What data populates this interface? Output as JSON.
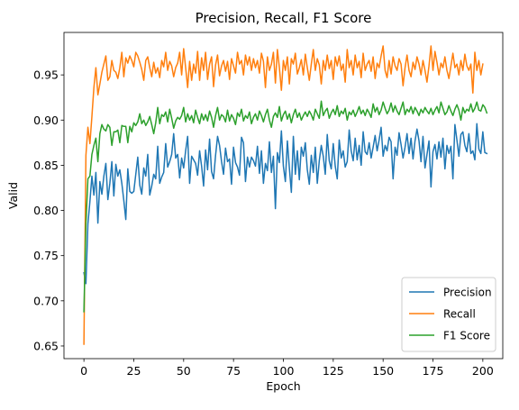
{
  "chart_data": {
    "type": "line",
    "title": "Precision, Recall, F1 Score",
    "xlabel": "Epoch",
    "ylabel": "Valid",
    "xlim": [
      -10,
      210
    ],
    "ylim": [
      0.636,
      0.997
    ],
    "xticks": [
      0,
      25,
      50,
      75,
      100,
      125,
      150,
      175,
      200
    ],
    "yticks": [
      0.65,
      0.7,
      0.75,
      0.8,
      0.85,
      0.9,
      0.95
    ],
    "ytick_labels": [
      "0.65",
      "0.70",
      "0.75",
      "0.80",
      "0.85",
      "0.90",
      "0.95"
    ],
    "grid": false,
    "legend_position": "bottom-right",
    "x_start": 0,
    "x_step": 1,
    "series": [
      {
        "name": "Precision",
        "color": "#1f77b4",
        "values": [
          0.731,
          0.719,
          0.785,
          0.81,
          0.838,
          0.817,
          0.842,
          0.786,
          0.832,
          0.818,
          0.838,
          0.852,
          0.812,
          0.83,
          0.854,
          0.816,
          0.851,
          0.838,
          0.845,
          0.83,
          0.811,
          0.79,
          0.846,
          0.821,
          0.819,
          0.821,
          0.84,
          0.859,
          0.828,
          0.818,
          0.847,
          0.838,
          0.862,
          0.817,
          0.827,
          0.84,
          0.835,
          0.871,
          0.83,
          0.837,
          0.842,
          0.874,
          0.848,
          0.854,
          0.862,
          0.885,
          0.858,
          0.862,
          0.836,
          0.858,
          0.847,
          0.866,
          0.882,
          0.83,
          0.86,
          0.856,
          0.852,
          0.839,
          0.866,
          0.849,
          0.827,
          0.867,
          0.845,
          0.879,
          0.843,
          0.835,
          0.861,
          0.882,
          0.872,
          0.854,
          0.84,
          0.869,
          0.854,
          0.857,
          0.829,
          0.87,
          0.853,
          0.848,
          0.839,
          0.881,
          0.875,
          0.832,
          0.859,
          0.848,
          0.859,
          0.855,
          0.849,
          0.871,
          0.841,
          0.866,
          0.83,
          0.852,
          0.844,
          0.876,
          0.842,
          0.86,
          0.802,
          0.864,
          0.853,
          0.888,
          0.849,
          0.832,
          0.877,
          0.847,
          0.82,
          0.882,
          0.84,
          0.866,
          0.834,
          0.87,
          0.86,
          0.875,
          0.845,
          0.829,
          0.861,
          0.842,
          0.87,
          0.83,
          0.855,
          0.872,
          0.86,
          0.84,
          0.884,
          0.855,
          0.846,
          0.874,
          0.849,
          0.835,
          0.878,
          0.858,
          0.866,
          0.848,
          0.854,
          0.889,
          0.866,
          0.855,
          0.88,
          0.856,
          0.872,
          0.85,
          0.887,
          0.865,
          0.862,
          0.875,
          0.858,
          0.87,
          0.883,
          0.866,
          0.878,
          0.892,
          0.86,
          0.872,
          0.866,
          0.881,
          0.876,
          0.835,
          0.87,
          0.861,
          0.886,
          0.873,
          0.858,
          0.87,
          0.885,
          0.863,
          0.88,
          0.857,
          0.877,
          0.89,
          0.877,
          0.854,
          0.882,
          0.847,
          0.862,
          0.877,
          0.826,
          0.865,
          0.873,
          0.857,
          0.876,
          0.859,
          0.88,
          0.846,
          0.872,
          0.863,
          0.871,
          0.835,
          0.895,
          0.878,
          0.86,
          0.884,
          0.887,
          0.872,
          0.865,
          0.885,
          0.863,
          0.866,
          0.856,
          0.896,
          0.868,
          0.863,
          0.887,
          0.864,
          0.863
        ]
      },
      {
        "name": "Recall",
        "color": "#ff7f0e",
        "values": [
          0.652,
          0.861,
          0.892,
          0.874,
          0.904,
          0.936,
          0.958,
          0.928,
          0.94,
          0.953,
          0.962,
          0.971,
          0.944,
          0.948,
          0.966,
          0.955,
          0.953,
          0.946,
          0.958,
          0.975,
          0.948,
          0.969,
          0.963,
          0.971,
          0.966,
          0.959,
          0.975,
          0.971,
          0.964,
          0.956,
          0.944,
          0.966,
          0.97,
          0.958,
          0.948,
          0.964,
          0.952,
          0.958,
          0.947,
          0.966,
          0.959,
          0.975,
          0.955,
          0.965,
          0.96,
          0.948,
          0.958,
          0.963,
          0.975,
          0.95,
          0.979,
          0.958,
          0.936,
          0.965,
          0.944,
          0.962,
          0.952,
          0.976,
          0.944,
          0.969,
          0.955,
          0.975,
          0.945,
          0.962,
          0.97,
          0.937,
          0.961,
          0.972,
          0.949,
          0.96,
          0.966,
          0.954,
          0.965,
          0.945,
          0.968,
          0.96,
          0.952,
          0.975,
          0.962,
          0.966,
          0.95,
          0.972,
          0.961,
          0.97,
          0.955,
          0.968,
          0.958,
          0.966,
          0.952,
          0.974,
          0.965,
          0.936,
          0.97,
          0.955,
          0.962,
          0.975,
          0.941,
          0.978,
          0.958,
          0.933,
          0.966,
          0.955,
          0.97,
          0.94,
          0.968,
          0.962,
          0.974,
          0.951,
          0.958,
          0.967,
          0.95,
          0.973,
          0.958,
          0.944,
          0.962,
          0.978,
          0.955,
          0.968,
          0.961,
          0.94,
          0.966,
          0.955,
          0.972,
          0.957,
          0.966,
          0.945,
          0.97,
          0.96,
          0.971,
          0.955,
          0.962,
          0.942,
          0.978,
          0.958,
          0.966,
          0.95,
          0.972,
          0.958,
          0.965,
          0.947,
          0.974,
          0.955,
          0.962,
          0.966,
          0.954,
          0.97,
          0.946,
          0.963,
          0.958,
          0.971,
          0.982,
          0.955,
          0.947,
          0.966,
          0.951,
          0.97,
          0.96,
          0.955,
          0.968,
          0.962,
          0.938,
          0.958,
          0.972,
          0.955,
          0.948,
          0.964,
          0.956,
          0.97,
          0.962,
          0.95,
          0.966,
          0.955,
          0.942,
          0.96,
          0.982,
          0.955,
          0.976,
          0.964,
          0.95,
          0.963,
          0.958,
          0.97,
          0.955,
          0.946,
          0.96,
          0.974,
          0.958,
          0.962,
          0.95,
          0.966,
          0.955,
          0.973,
          0.96,
          0.955,
          0.962,
          0.93,
          0.975,
          0.955,
          0.966,
          0.95,
          0.962
        ]
      },
      {
        "name": "F1 Score",
        "color": "#2ca02c",
        "values": [
          0.688,
          0.785,
          0.835,
          0.838,
          0.862,
          0.872,
          0.88,
          0.854,
          0.885,
          0.895,
          0.89,
          0.888,
          0.895,
          0.892,
          0.872,
          0.887,
          0.887,
          0.889,
          0.875,
          0.894,
          0.893,
          0.893,
          0.875,
          0.893,
          0.887,
          0.897,
          0.894,
          0.898,
          0.907,
          0.896,
          0.9,
          0.894,
          0.898,
          0.904,
          0.895,
          0.885,
          0.897,
          0.914,
          0.896,
          0.906,
          0.904,
          0.909,
          0.898,
          0.912,
          0.902,
          0.891,
          0.899,
          0.903,
          0.901,
          0.905,
          0.914,
          0.898,
          0.907,
          0.9,
          0.905,
          0.897,
          0.911,
          0.903,
          0.896,
          0.907,
          0.9,
          0.906,
          0.899,
          0.91,
          0.903,
          0.892,
          0.905,
          0.914,
          0.9,
          0.906,
          0.904,
          0.898,
          0.911,
          0.899,
          0.906,
          0.902,
          0.895,
          0.908,
          0.904,
          0.912,
          0.899,
          0.905,
          0.902,
          0.909,
          0.896,
          0.903,
          0.907,
          0.9,
          0.91,
          0.905,
          0.898,
          0.906,
          0.912,
          0.9,
          0.892,
          0.904,
          0.908,
          0.903,
          0.915,
          0.899,
          0.906,
          0.91,
          0.901,
          0.907,
          0.897,
          0.906,
          0.912,
          0.903,
          0.908,
          0.9,
          0.905,
          0.909,
          0.904,
          0.91,
          0.906,
          0.9,
          0.912,
          0.907,
          0.902,
          0.921,
          0.905,
          0.91,
          0.913,
          0.902,
          0.908,
          0.912,
          0.906,
          0.916,
          0.904,
          0.91,
          0.907,
          0.913,
          0.9,
          0.909,
          0.906,
          0.911,
          0.904,
          0.909,
          0.915,
          0.907,
          0.911,
          0.905,
          0.912,
          0.908,
          0.903,
          0.918,
          0.909,
          0.914,
          0.906,
          0.911,
          0.92,
          0.913,
          0.907,
          0.911,
          0.919,
          0.909,
          0.916,
          0.91,
          0.906,
          0.913,
          0.92,
          0.906,
          0.912,
          0.909,
          0.915,
          0.907,
          0.914,
          0.91,
          0.905,
          0.912,
          0.908,
          0.914,
          0.91,
          0.907,
          0.913,
          0.906,
          0.911,
          0.915,
          0.908,
          0.92,
          0.913,
          0.906,
          0.909,
          0.916,
          0.91,
          0.905,
          0.912,
          0.917,
          0.911,
          0.9,
          0.914,
          0.908,
          0.912,
          0.91,
          0.918,
          0.909,
          0.913,
          0.92,
          0.911,
          0.91,
          0.917,
          0.914,
          0.908
        ]
      }
    ]
  }
}
